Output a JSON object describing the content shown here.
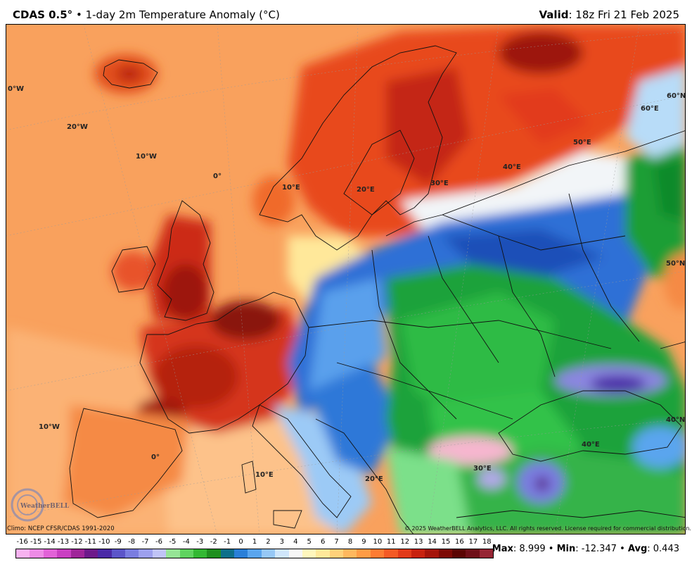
{
  "header": {
    "model": "CDAS 0.5",
    "degree": "°",
    "bullet": "•",
    "product": "1-day 2m Temperature Anomaly (°C)",
    "valid_label": "Valid",
    "valid_time": ": 18z Fri 21 Feb 2025"
  },
  "map": {
    "labels": {
      "lon_0w": "0°W",
      "lon_20w": "20°W",
      "lon_10w_top": "10°W",
      "lon_0": "0°",
      "lon_10e_top": "10°E",
      "lon_20e_top": "20°E",
      "lon_30e_top": "30°E",
      "lon_40e_top": "40°E",
      "lon_50e": "50°E",
      "lat_60e": "60°E",
      "lat_60n": "60°N",
      "lat_50n": "50°N",
      "lat_40n": "40°N",
      "lon_10w_bot": "10°W",
      "lon_0_bot": "0°",
      "lon_10e_bot": "10°E",
      "lon_20e_bot": "20°E",
      "lon_30e_bot": "30°E",
      "lon_40e_bot": "40°E"
    },
    "logo_text": "WeatherBELL"
  },
  "footer": {
    "climo": "Climo: NCEP CFSR/CDAS 1991-2020",
    "copyright": "© 2025 WeatherBELL Analytics, LLC. All rights reserved. License required for commercial distribution."
  },
  "legend": {
    "ticks": [
      "-16",
      "-15",
      "-14",
      "-13",
      "-12",
      "-11",
      "-10",
      "-9",
      "-8",
      "-7",
      "-6",
      "-5",
      "-4",
      "-3",
      "-2",
      "-1",
      "0",
      "1",
      "2",
      "3",
      "4",
      "5",
      "6",
      "7",
      "8",
      "9",
      "10",
      "11",
      "12",
      "13",
      "14",
      "15",
      "16",
      "17",
      "18"
    ],
    "colors": [
      "#f7b2f0",
      "#ee8be6",
      "#e262d8",
      "#c93fc2",
      "#9f2599",
      "#6d1a8a",
      "#4a2aa6",
      "#5b55c9",
      "#7a7de0",
      "#9da0ee",
      "#c0c4f6",
      "#96e496",
      "#5fd35f",
      "#33b833",
      "#1f8f1f",
      "#0d6f8a",
      "#2a7fd8",
      "#5aa5ee",
      "#96c8f6",
      "#cfe6fb",
      "#f7f7f7",
      "#fff7bd",
      "#ffe89a",
      "#ffd17a",
      "#ffb85e",
      "#ff9c45",
      "#fd7c33",
      "#f45a25",
      "#e23b1a",
      "#c8220f",
      "#a5140a",
      "#7d0a05",
      "#5a0503",
      "#6f0f18",
      "#962534"
    ]
  },
  "stats": {
    "max_label": "Max",
    "max_value": ": 8.999",
    "sep1": " • ",
    "min_label": "Min",
    "min_value": ": -12.347",
    "sep2": " • ",
    "avg_label": "Avg",
    "avg_value": ": 0.443"
  }
}
